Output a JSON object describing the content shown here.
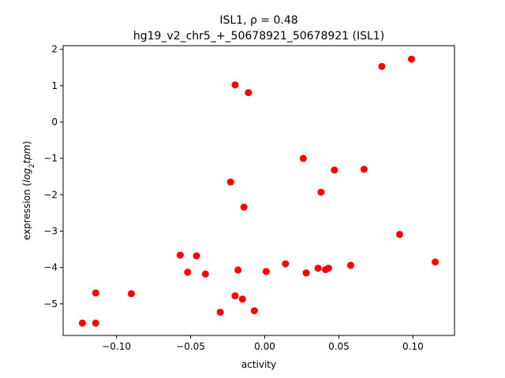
{
  "chart_data": {
    "type": "scatter",
    "title": "ISL1, ρ = 0.48",
    "subtitle": "hg19_v2_chr5_+_50678921_50678921 (ISL1)",
    "xlabel": "activity",
    "ylabel_prefix": "expression (",
    "ylabel_math": "log",
    "ylabel_sub": "2",
    "ylabel_math2": "tpm",
    "ylabel_suffix": ")",
    "xlim": [
      -0.136,
      0.128
    ],
    "ylim": [
      -5.87,
      2.1
    ],
    "xticks": [
      -0.1,
      -0.05,
      0.0,
      0.05,
      0.1
    ],
    "xtick_labels": [
      "−0.10",
      "−0.05",
      "0.00",
      "0.05",
      "0.10"
    ],
    "yticks": [
      -5,
      -4,
      -3,
      -2,
      -1,
      0,
      1,
      2
    ],
    "ytick_labels": [
      "−5",
      "−4",
      "−3",
      "−2",
      "−1",
      "0",
      "1",
      "2"
    ],
    "grid": false,
    "marker_color": "#ff0000",
    "points": [
      {
        "x": -0.123,
        "y": -5.53
      },
      {
        "x": -0.114,
        "y": -5.53
      },
      {
        "x": -0.114,
        "y": -4.7
      },
      {
        "x": -0.09,
        "y": -4.72
      },
      {
        "x": -0.057,
        "y": -3.66
      },
      {
        "x": -0.052,
        "y": -4.13
      },
      {
        "x": -0.046,
        "y": -3.68
      },
      {
        "x": -0.04,
        "y": -4.18
      },
      {
        "x": -0.03,
        "y": -5.23
      },
      {
        "x": -0.023,
        "y": -1.65
      },
      {
        "x": -0.02,
        "y": 1.02
      },
      {
        "x": -0.02,
        "y": -4.78
      },
      {
        "x": -0.018,
        "y": -4.07
      },
      {
        "x": -0.015,
        "y": -4.87
      },
      {
        "x": -0.014,
        "y": -2.34
      },
      {
        "x": -0.011,
        "y": 0.81
      },
      {
        "x": -0.007,
        "y": -5.19
      },
      {
        "x": 0.001,
        "y": -4.11
      },
      {
        "x": 0.014,
        "y": -3.9
      },
      {
        "x": 0.026,
        "y": -1.0
      },
      {
        "x": 0.028,
        "y": -4.15
      },
      {
        "x": 0.036,
        "y": -4.02
      },
      {
        "x": 0.038,
        "y": -1.93
      },
      {
        "x": 0.041,
        "y": -4.06
      },
      {
        "x": 0.043,
        "y": -4.02
      },
      {
        "x": 0.047,
        "y": -1.32
      },
      {
        "x": 0.058,
        "y": -3.94
      },
      {
        "x": 0.067,
        "y": -1.3
      },
      {
        "x": 0.079,
        "y": 1.53
      },
      {
        "x": 0.091,
        "y": -3.09
      },
      {
        "x": 0.099,
        "y": 1.73
      },
      {
        "x": 0.115,
        "y": -3.85
      }
    ]
  }
}
